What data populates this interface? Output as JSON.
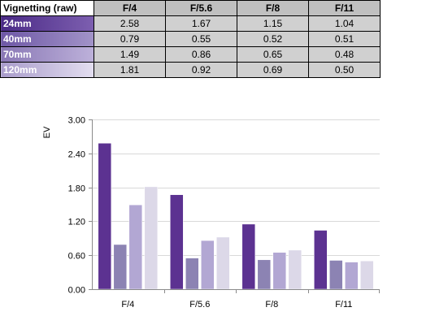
{
  "table": {
    "corner_label": "Vignetting (raw)",
    "columns": [
      "F/4",
      "F/5.6",
      "F/8",
      "F/11"
    ],
    "rows": [
      {
        "label": "24mm",
        "values": [
          "2.58",
          "1.67",
          "1.15",
          "1.04"
        ]
      },
      {
        "label": "40mm",
        "values": [
          "0.79",
          "0.55",
          "0.52",
          "0.51"
        ]
      },
      {
        "label": "70mm",
        "values": [
          "1.49",
          "0.86",
          "0.65",
          "0.48"
        ]
      },
      {
        "label": "120mm",
        "values": [
          "1.81",
          "0.92",
          "0.69",
          "0.50"
        ]
      }
    ]
  },
  "chart_data": {
    "type": "bar",
    "categories": [
      "F/4",
      "F/5.6",
      "F/8",
      "F/11"
    ],
    "series": [
      {
        "name": "24mm",
        "values": [
          2.58,
          1.67,
          1.15,
          1.04
        ],
        "color": "#5c3291"
      },
      {
        "name": "40mm",
        "values": [
          0.79,
          0.55,
          0.52,
          0.51
        ],
        "color": "#8c83b3"
      },
      {
        "name": "70mm",
        "values": [
          1.49,
          0.86,
          0.65,
          0.48
        ],
        "color": "#b2a7d3"
      },
      {
        "name": "120mm",
        "values": [
          1.81,
          0.92,
          0.69,
          0.5
        ],
        "color": "#dcd8e8"
      }
    ],
    "ylabel": "EV",
    "yticks": [
      "0.00",
      "0.60",
      "1.20",
      "1.80",
      "2.40",
      "3.00"
    ],
    "ylim": [
      0,
      3.0
    ],
    "grid": true,
    "legend": false
  }
}
